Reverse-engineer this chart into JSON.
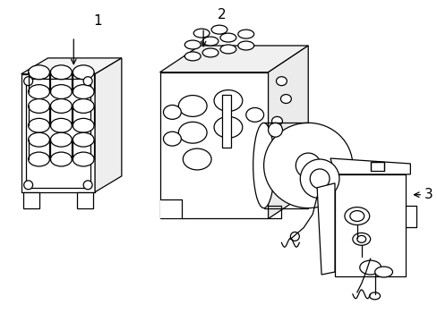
{
  "background_color": "#ffffff",
  "line_color": "#000000",
  "label_color": "#000000",
  "fig_width": 4.89,
  "fig_height": 3.6,
  "dpi": 100
}
